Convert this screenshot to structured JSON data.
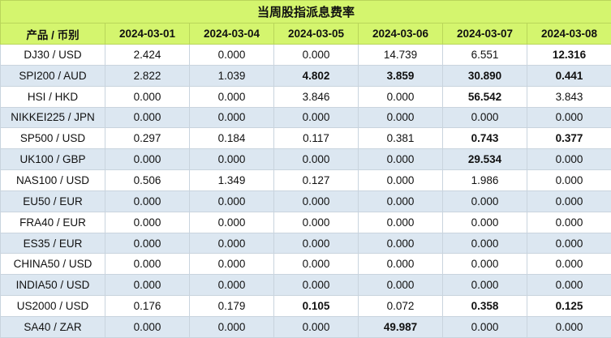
{
  "title": "当周股指派息费率",
  "header": {
    "product_label": "产品 / 币别",
    "dates": [
      "2024-03-01",
      "2024-03-04",
      "2024-03-05",
      "2024-03-06",
      "2024-03-07",
      "2024-03-08"
    ]
  },
  "rows": [
    {
      "product": "DJ30 / USD",
      "values": [
        "2.424",
        "0.000",
        "0.000",
        "14.739",
        "6.551",
        "12.316"
      ],
      "bold": [
        false,
        false,
        false,
        false,
        false,
        true
      ]
    },
    {
      "product": "SPI200 / AUD",
      "values": [
        "2.822",
        "1.039",
        "4.802",
        "3.859",
        "30.890",
        "0.441"
      ],
      "bold": [
        false,
        false,
        true,
        true,
        true,
        true
      ]
    },
    {
      "product": "HSI / HKD",
      "values": [
        "0.000",
        "0.000",
        "3.846",
        "0.000",
        "56.542",
        "3.843"
      ],
      "bold": [
        false,
        false,
        false,
        false,
        true,
        false
      ]
    },
    {
      "product": "NIKKEI225 / JPN",
      "values": [
        "0.000",
        "0.000",
        "0.000",
        "0.000",
        "0.000",
        "0.000"
      ],
      "bold": [
        false,
        false,
        false,
        false,
        false,
        false
      ]
    },
    {
      "product": "SP500 / USD",
      "values": [
        "0.297",
        "0.184",
        "0.117",
        "0.381",
        "0.743",
        "0.377"
      ],
      "bold": [
        false,
        false,
        false,
        false,
        true,
        true
      ]
    },
    {
      "product": "UK100 / GBP",
      "values": [
        "0.000",
        "0.000",
        "0.000",
        "0.000",
        "29.534",
        "0.000"
      ],
      "bold": [
        false,
        false,
        false,
        false,
        true,
        false
      ]
    },
    {
      "product": "NAS100 / USD",
      "values": [
        "0.506",
        "1.349",
        "0.127",
        "0.000",
        "1.986",
        "0.000"
      ],
      "bold": [
        false,
        false,
        false,
        false,
        false,
        false
      ]
    },
    {
      "product": "EU50 / EUR",
      "values": [
        "0.000",
        "0.000",
        "0.000",
        "0.000",
        "0.000",
        "0.000"
      ],
      "bold": [
        false,
        false,
        false,
        false,
        false,
        false
      ]
    },
    {
      "product": "FRA40 / EUR",
      "values": [
        "0.000",
        "0.000",
        "0.000",
        "0.000",
        "0.000",
        "0.000"
      ],
      "bold": [
        false,
        false,
        false,
        false,
        false,
        false
      ]
    },
    {
      "product": "ES35 / EUR",
      "values": [
        "0.000",
        "0.000",
        "0.000",
        "0.000",
        "0.000",
        "0.000"
      ],
      "bold": [
        false,
        false,
        false,
        false,
        false,
        false
      ]
    },
    {
      "product": "CHINA50 / USD",
      "values": [
        "0.000",
        "0.000",
        "0.000",
        "0.000",
        "0.000",
        "0.000"
      ],
      "bold": [
        false,
        false,
        false,
        false,
        false,
        false
      ]
    },
    {
      "product": "INDIA50 / USD",
      "values": [
        "0.000",
        "0.000",
        "0.000",
        "0.000",
        "0.000",
        "0.000"
      ],
      "bold": [
        false,
        false,
        false,
        false,
        false,
        false
      ]
    },
    {
      "product": "US2000 / USD",
      "values": [
        "0.176",
        "0.179",
        "0.105",
        "0.072",
        "0.358",
        "0.125"
      ],
      "bold": [
        false,
        false,
        true,
        false,
        true,
        true
      ]
    },
    {
      "product": "SA40 / ZAR",
      "values": [
        "0.000",
        "0.000",
        "0.000",
        "49.987",
        "0.000",
        "0.000"
      ],
      "bold": [
        false,
        false,
        false,
        true,
        false,
        false
      ]
    }
  ],
  "colors": {
    "header_bg": "#d4f56e",
    "row_alt_bg": "#dce7f1",
    "row_bg": "#ffffff",
    "border": "#c9d4de"
  }
}
